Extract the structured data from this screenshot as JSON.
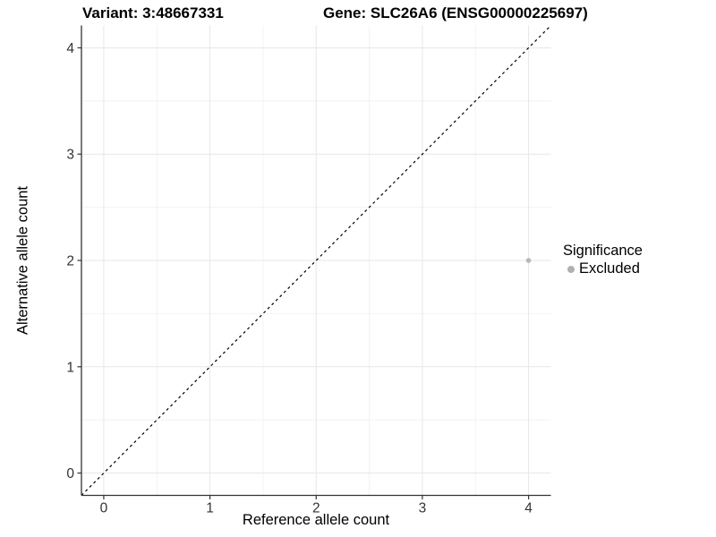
{
  "chart_data": {
    "type": "scatter",
    "title_left": "Variant: 3:48667331",
    "title_right": "Gene: SLC26A6 (ENSG00000225697)",
    "xlabel": "Reference allele count",
    "ylabel": "Alternative allele count",
    "xlim": [
      -0.21,
      4.21
    ],
    "ylim": [
      -0.21,
      4.21
    ],
    "xticks": [
      0,
      1,
      2,
      3,
      4
    ],
    "yticks": [
      0,
      1,
      2,
      3,
      4
    ],
    "minor_ticks": [
      0.5,
      1.5,
      2.5,
      3.5
    ],
    "grid": true,
    "points": [
      {
        "x": 4,
        "y": 2,
        "significance": "Excluded"
      }
    ],
    "identity_line": {
      "style": "dashed",
      "slope": 1,
      "intercept": 0
    },
    "legend": {
      "title": "Significance",
      "position": "right",
      "entries": [
        {
          "label": "Excluded",
          "color": "#b0b0b0"
        }
      ]
    },
    "colors": {
      "point": "#b7b7b7",
      "grid_major": "#e7e7e7",
      "grid_minor": "#f2f2f2",
      "axis": "#333333",
      "tick_label": "#333333",
      "dashed_line": "#000000",
      "background": "#ffffff"
    }
  }
}
